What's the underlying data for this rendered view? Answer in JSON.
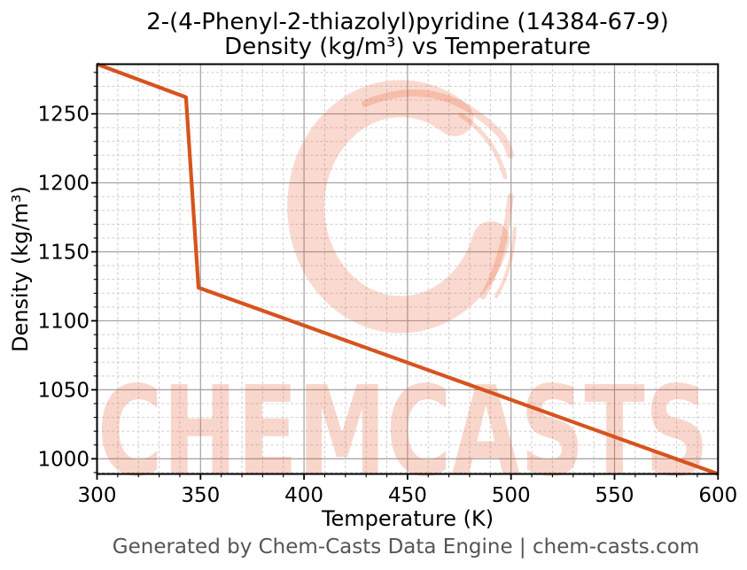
{
  "title": {
    "line1": "2-(4-Phenyl-2-thiazolyl)pyridine (14384-67-9)",
    "line2": "Density (kg/m³) vs Temperature"
  },
  "footer": {
    "text": "Generated by Chem-Casts Data Engine | chem-casts.com"
  },
  "watermark": {
    "text": "CHEMCASTS",
    "color": "#e8562a",
    "ring_opacity": 0.22,
    "text_opacity": 0.24
  },
  "colors": {
    "line": "#d6541e",
    "grid_major": "#a0a0a0",
    "grid_minor": "#cdcdcd",
    "axis": "#000000",
    "footer_text": "#555555"
  },
  "chart_data": {
    "type": "line",
    "title": "2-(4-Phenyl-2-thiazolyl)pyridine (14384-67-9)\nDensity (kg/m³) vs Temperature",
    "xlabel": "Temperature (K)",
    "ylabel": "Density (kg/m³)",
    "xlim": [
      300,
      600
    ],
    "ylim": [
      989,
      1286
    ],
    "x_ticks": [
      300,
      350,
      400,
      450,
      500,
      550,
      600
    ],
    "y_ticks": [
      1000,
      1050,
      1100,
      1150,
      1200,
      1250
    ],
    "minor_step_x": 10,
    "minor_step_y": 10,
    "grid": true,
    "legend": false,
    "series": [
      {
        "name": "Density (kg/m³)",
        "color": "#d6541e",
        "line_width": 4.2,
        "points": [
          [
            300,
            1286
          ],
          [
            343,
            1262
          ],
          [
            349,
            1124
          ],
          [
            600,
            989
          ]
        ]
      }
    ]
  }
}
